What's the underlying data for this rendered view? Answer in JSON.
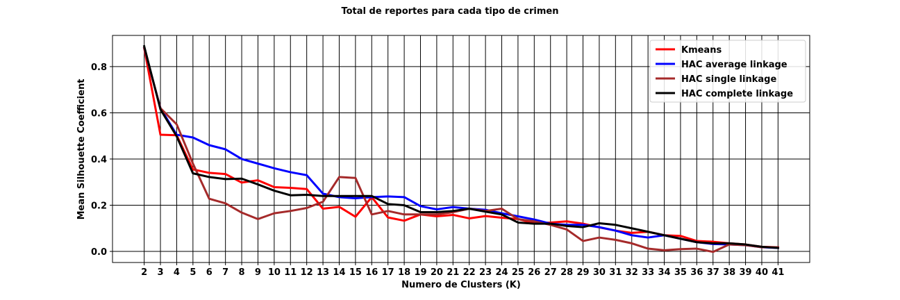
{
  "chart_data": {
    "type": "line",
    "title": "Total de reportes para cada tipo de crimen",
    "xlabel": "Numero de Clusters (K)",
    "ylabel": "Mean Silhouette Coefficient",
    "x": [
      2,
      3,
      4,
      5,
      6,
      7,
      8,
      9,
      10,
      11,
      12,
      13,
      14,
      15,
      16,
      17,
      18,
      19,
      20,
      21,
      22,
      23,
      24,
      25,
      26,
      27,
      28,
      29,
      30,
      31,
      32,
      33,
      34,
      35,
      36,
      37,
      38,
      39,
      40,
      41
    ],
    "xlim": [
      0.05,
      42.95
    ],
    "ylim": [
      -0.048,
      0.935
    ],
    "yticks": [
      0.0,
      0.2,
      0.4,
      0.6,
      0.8
    ],
    "ytick_labels": [
      "0.0",
      "0.2",
      "0.4",
      "0.6",
      "0.8"
    ],
    "grid": true,
    "legend_position": "upper right",
    "series": [
      {
        "name": "Kmeans",
        "color": "#ff0000",
        "values": [
          0.88,
          0.505,
          0.503,
          0.355,
          0.34,
          0.335,
          0.298,
          0.308,
          0.278,
          0.275,
          0.27,
          0.185,
          0.193,
          0.15,
          0.235,
          0.147,
          0.133,
          0.16,
          0.152,
          0.158,
          0.143,
          0.153,
          0.146,
          0.14,
          0.122,
          0.125,
          0.13,
          0.12,
          0.104,
          0.09,
          0.08,
          0.085,
          0.07,
          0.067,
          0.045,
          0.042,
          0.035,
          0.03,
          0.02,
          0.018
        ]
      },
      {
        "name": "HAC average linkage",
        "color": "#0000ff",
        "values": [
          0.88,
          0.62,
          0.505,
          0.493,
          0.46,
          0.442,
          0.4,
          0.38,
          0.36,
          0.343,
          0.33,
          0.25,
          0.235,
          0.23,
          0.235,
          0.238,
          0.235,
          0.196,
          0.182,
          0.192,
          0.185,
          0.18,
          0.165,
          0.152,
          0.138,
          0.12,
          0.115,
          0.115,
          0.105,
          0.09,
          0.07,
          0.06,
          0.07,
          0.055,
          0.04,
          0.032,
          0.03,
          0.027,
          0.018,
          0.015
        ]
      },
      {
        "name": "HAC single linkage",
        "color": "#a52a2a",
        "values": [
          0.88,
          0.62,
          0.55,
          0.38,
          0.228,
          0.208,
          0.168,
          0.14,
          0.165,
          0.175,
          0.188,
          0.215,
          0.322,
          0.318,
          0.16,
          0.175,
          0.16,
          0.16,
          0.16,
          0.17,
          0.185,
          0.175,
          0.185,
          0.14,
          0.13,
          0.115,
          0.095,
          0.045,
          0.06,
          0.05,
          0.035,
          0.012,
          0.005,
          0.01,
          0.012,
          -0.002,
          0.03,
          0.027,
          0.018,
          0.018
        ]
      },
      {
        "name": "HAC complete linkage",
        "color": "#000000",
        "values": [
          0.888,
          0.615,
          0.498,
          0.338,
          0.322,
          0.313,
          0.315,
          0.29,
          0.263,
          0.243,
          0.245,
          0.24,
          0.24,
          0.24,
          0.24,
          0.205,
          0.2,
          0.17,
          0.17,
          0.175,
          0.185,
          0.172,
          0.16,
          0.125,
          0.12,
          0.12,
          0.11,
          0.105,
          0.122,
          0.115,
          0.1,
          0.085,
          0.07,
          0.055,
          0.04,
          0.035,
          0.035,
          0.03,
          0.02,
          0.015
        ]
      }
    ]
  }
}
